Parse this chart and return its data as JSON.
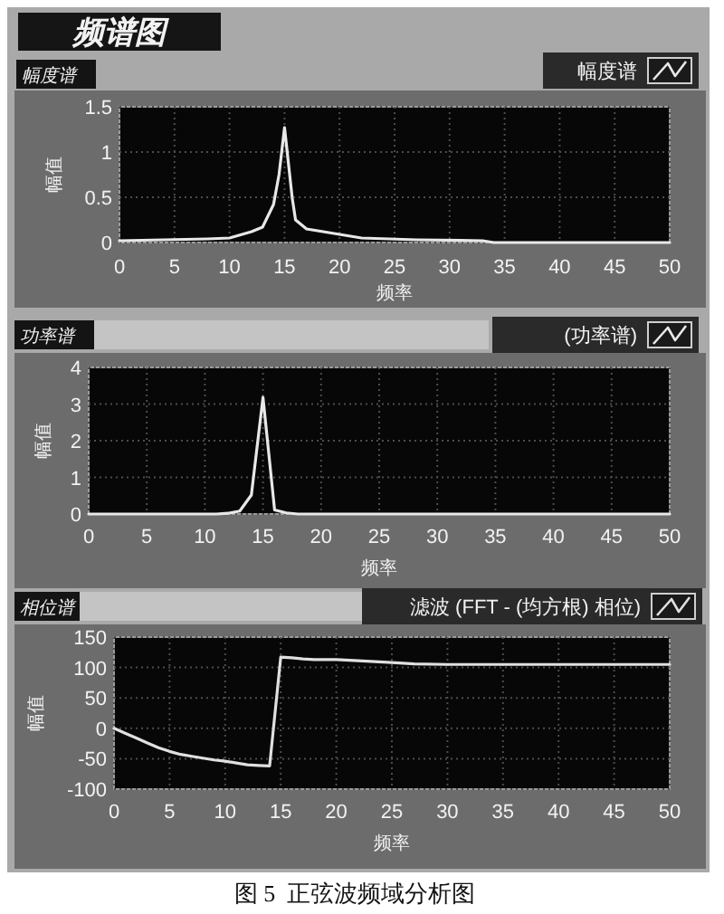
{
  "chart_data": [
    {
      "type": "line",
      "title": "频谱图",
      "subtitle": "幅度谱",
      "xlabel": "频率",
      "ylabel": "幅值",
      "xlim": [
        0,
        50
      ],
      "ylim": [
        0,
        1.5
      ],
      "xticks": [
        0,
        5,
        10,
        15,
        20,
        25,
        30,
        35,
        40,
        45,
        50
      ],
      "yticks": [
        0,
        0.5,
        1,
        1.5
      ],
      "grid": true,
      "legend": "top right",
      "series": [
        {
          "name": "幅度谱",
          "color": "#e8e8e8",
          "x": [
            0,
            4,
            8,
            10,
            12,
            13,
            14,
            14.5,
            15,
            15.7,
            16,
            17,
            20,
            22,
            27,
            33,
            34,
            50
          ],
          "values": [
            0.02,
            0.03,
            0.04,
            0.05,
            0.12,
            0.17,
            0.42,
            0.75,
            1.27,
            0.49,
            0.25,
            0.15,
            0.09,
            0.05,
            0.03,
            0.02,
            0,
            0
          ]
        }
      ]
    },
    {
      "type": "line",
      "title": "功率谱",
      "xlabel": "频率",
      "ylabel": "幅值",
      "xlim": [
        0,
        50
      ],
      "ylim": [
        0,
        4
      ],
      "xticks": [
        0,
        5,
        10,
        15,
        20,
        25,
        30,
        35,
        40,
        45,
        50
      ],
      "yticks": [
        0,
        1,
        2,
        3,
        4
      ],
      "grid": true,
      "legend": "top right",
      "series": [
        {
          "name": "(功率谱)",
          "color": "#e8e8e8",
          "x": [
            0,
            11,
            12,
            13,
            14,
            15,
            16,
            17,
            18,
            50
          ],
          "values": [
            0,
            0,
            0.02,
            0.08,
            0.52,
            3.18,
            0.11,
            0.03,
            0,
            0
          ]
        }
      ]
    },
    {
      "type": "line",
      "title": "相位谱",
      "xlabel": "频率",
      "ylabel": "幅值",
      "xlim": [
        0,
        50
      ],
      "ylim": [
        -100,
        150
      ],
      "xticks": [
        0,
        5,
        10,
        15,
        20,
        25,
        30,
        35,
        40,
        45,
        50
      ],
      "yticks": [
        -100,
        -50,
        0,
        50,
        100,
        150
      ],
      "grid": true,
      "legend": "top right",
      "annotations": [
        "图 5  正弦波频域分析图"
      ],
      "series": [
        {
          "name": "滤波 (FFT - (均方根) 相位)",
          "color": "#e0e0e0",
          "x": [
            0,
            1,
            2,
            3,
            4,
            5,
            6,
            7,
            8,
            9,
            10,
            11,
            12,
            13,
            14,
            15,
            16,
            17,
            18,
            20,
            22,
            25,
            27,
            30,
            50
          ],
          "values": [
            0,
            -8,
            -16,
            -24,
            -32,
            -38,
            -43,
            -46,
            -49,
            -52,
            -54,
            -57,
            -60,
            -61,
            -62,
            117,
            116,
            114,
            113,
            113,
            111,
            108,
            106,
            105,
            105
          ]
        }
      ]
    }
  ]
}
